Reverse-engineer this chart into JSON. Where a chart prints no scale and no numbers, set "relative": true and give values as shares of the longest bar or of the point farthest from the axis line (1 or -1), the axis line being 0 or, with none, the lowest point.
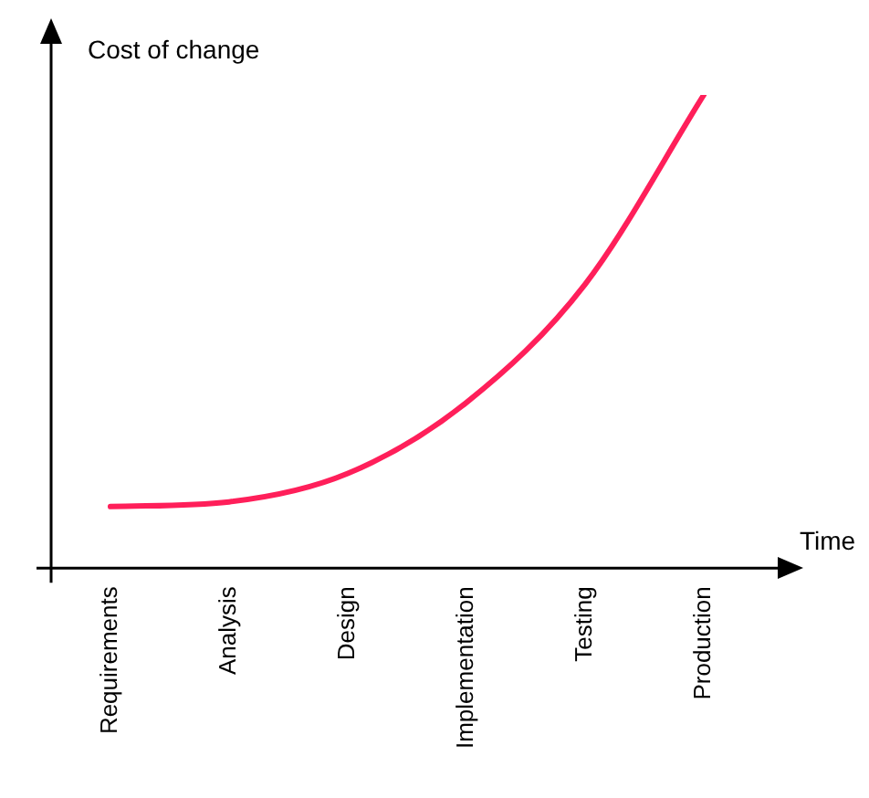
{
  "chart_data": {
    "type": "line",
    "relative": true,
    "ylabel": "Cost of change",
    "xlabel": "Time",
    "categories": [
      "Requirements",
      "Analysis",
      "Design",
      "Implementation",
      "Testing",
      "Production"
    ],
    "series": [
      {
        "color": "#ff1f5a",
        "values": [
          0.13,
          0.14,
          0.2,
          0.35,
          0.6,
          1
        ]
      }
    ],
    "marker": "none",
    "line_style": "solid",
    "grid": false,
    "legend": false
  }
}
